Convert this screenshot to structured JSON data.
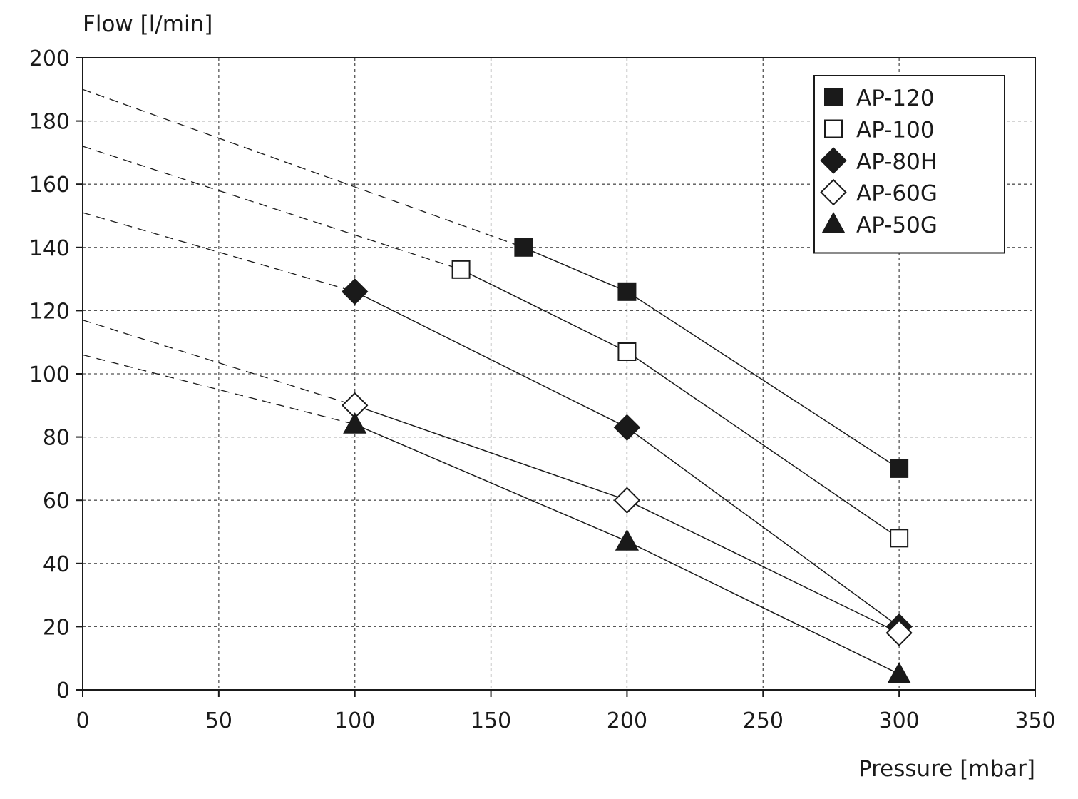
{
  "chart_data": {
    "type": "line",
    "xlabel": "Pressure [mbar]",
    "ylabel": "Flow [l/min]",
    "xlim": [
      0,
      350
    ],
    "ylim": [
      0,
      200
    ],
    "xticks": [
      0,
      50,
      100,
      150,
      200,
      250,
      300,
      350
    ],
    "yticks": [
      0,
      20,
      40,
      60,
      80,
      100,
      120,
      140,
      160,
      180,
      200
    ],
    "xtick_labels": [
      "0",
      "50",
      "100",
      "150",
      "200",
      "250",
      "300",
      "350"
    ],
    "ytick_labels": [
      "0",
      "20",
      "40",
      "60",
      "80",
      "100",
      "120",
      "140",
      "160",
      "180",
      "200"
    ],
    "grid": true,
    "grid_style": "dashed",
    "legend_position": "top-right",
    "series": [
      {
        "name": "AP-120",
        "marker": "square-filled",
        "points": [
          [
            162,
            140
          ],
          [
            200,
            126
          ],
          [
            300,
            70
          ]
        ],
        "extrapolation": [
          [
            0,
            190
          ],
          [
            162,
            140
          ]
        ]
      },
      {
        "name": "AP-100",
        "marker": "square-open",
        "points": [
          [
            139,
            133
          ],
          [
            200,
            107
          ],
          [
            300,
            48
          ]
        ],
        "extrapolation": [
          [
            0,
            172
          ],
          [
            139,
            133
          ]
        ]
      },
      {
        "name": "AP-80H",
        "marker": "diamond-filled",
        "points": [
          [
            100,
            126
          ],
          [
            200,
            83
          ],
          [
            300,
            20
          ]
        ],
        "extrapolation": [
          [
            0,
            151
          ],
          [
            100,
            126
          ]
        ]
      },
      {
        "name": "AP-60G",
        "marker": "diamond-open",
        "points": [
          [
            100,
            90
          ],
          [
            200,
            60
          ],
          [
            300,
            18
          ]
        ],
        "extrapolation": [
          [
            0,
            117
          ],
          [
            100,
            90
          ]
        ]
      },
      {
        "name": "AP-50G",
        "marker": "triangle-filled",
        "points": [
          [
            100,
            84
          ],
          [
            200,
            47
          ],
          [
            300,
            5
          ]
        ],
        "extrapolation": [
          [
            0,
            106
          ],
          [
            100,
            84
          ]
        ]
      }
    ]
  },
  "colors": {
    "ink": "#1a1a1a",
    "grid": "#555555",
    "background": "#ffffff"
  }
}
